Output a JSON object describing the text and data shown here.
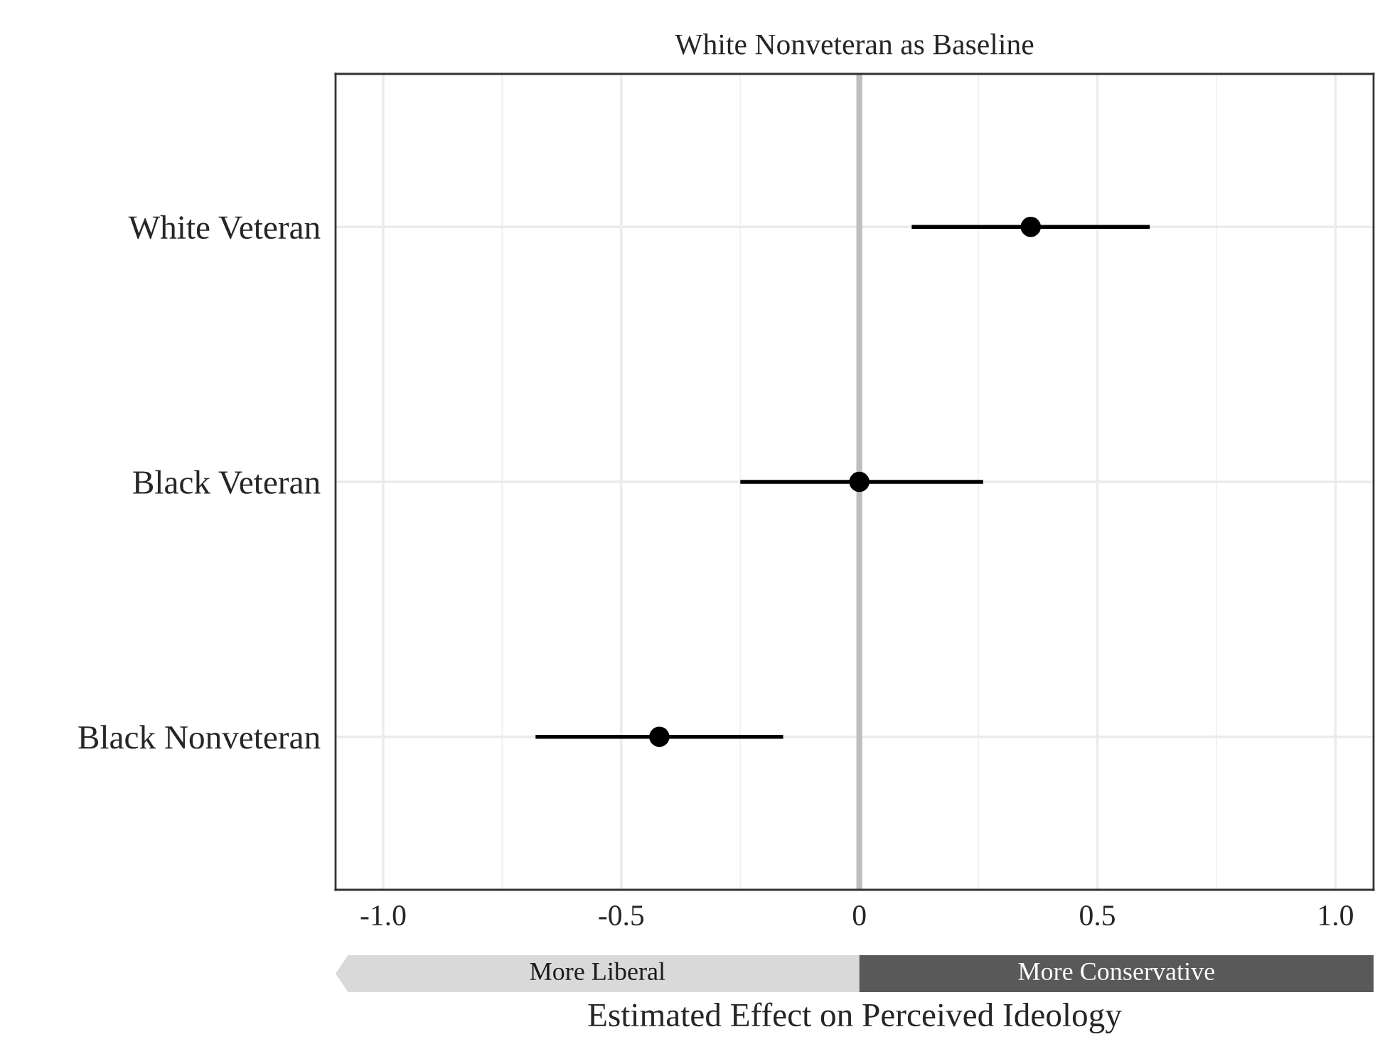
{
  "chart_data": {
    "type": "scatter",
    "orientation": "horizontal",
    "title": "White Nonveteran as Baseline",
    "xlabel": "Estimated Effect on Perceived Ideology",
    "categories": [
      "White Veteran",
      "Black Veteran",
      "Black Nonveteran"
    ],
    "series": [
      {
        "color": "#000000",
        "values": [
          0.36,
          0.0,
          -0.42
        ],
        "errors": [
          [
            0.11,
            0.61
          ],
          [
            -0.25,
            0.26
          ],
          [
            -0.68,
            -0.16
          ]
        ]
      }
    ],
    "xlim": [
      -1.1,
      1.08
    ],
    "xticks": [
      {
        "value": -1.0,
        "label": "-1.0"
      },
      {
        "value": -0.5,
        "label": "-0.5"
      },
      0,
      0.5,
      {
        "value": 1.0,
        "label": "1.0"
      }
    ],
    "grid": true,
    "marker": "circle",
    "ref_lines": [
      {
        "axis": "x",
        "value": 0,
        "color": "#bebebe"
      }
    ],
    "annotations": [
      "More Liberal",
      "More Conservative"
    ]
  }
}
